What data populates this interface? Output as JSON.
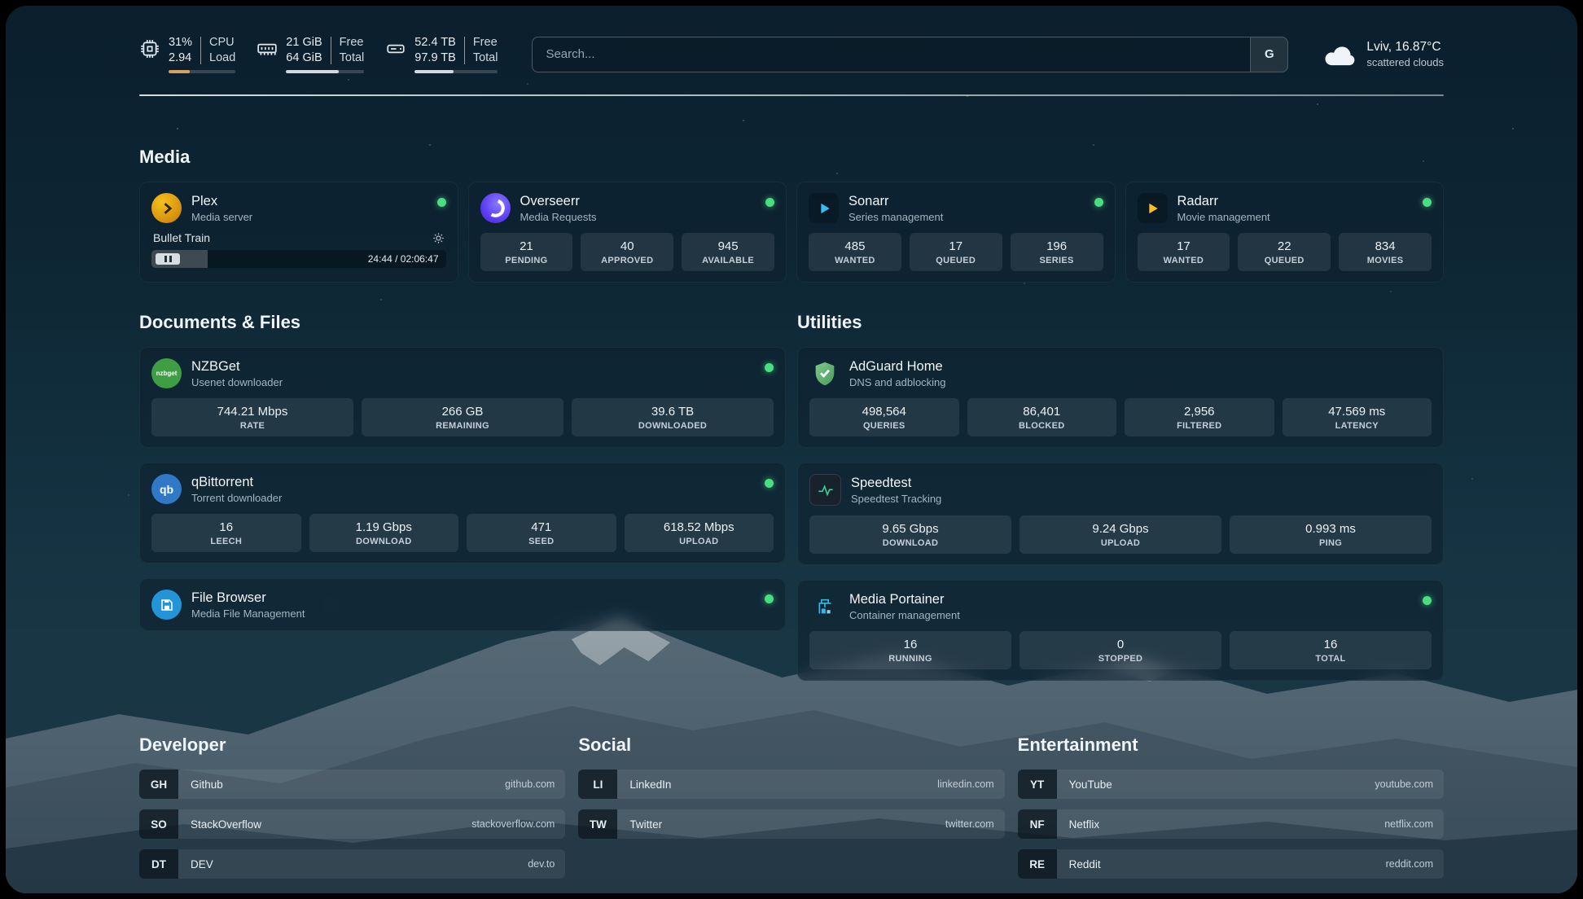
{
  "colors": {
    "status_online": "#4ade80",
    "cpu_bar_fill": "#d9a05b",
    "resource_bar_fill": "#cfd9df",
    "sonarr_accent": "#38bdf8",
    "radarr_accent": "#fbbf24",
    "speedtest_accent": "#34d399",
    "plex_accent": "#e5a00d",
    "overseerr_accent": "#5b3df5"
  },
  "header": {
    "cpu": {
      "values": [
        "31%",
        "2.94"
      ],
      "labels": [
        "CPU",
        "Load"
      ],
      "progress_pct": 31
    },
    "memory": {
      "values": [
        "21 GiB",
        "64 GiB"
      ],
      "labels": [
        "Free",
        "Total"
      ],
      "progress_pct": 67
    },
    "disk": {
      "values": [
        "52.4 TB",
        "97.9 TB"
      ],
      "labels": [
        "Free",
        "Total"
      ],
      "progress_pct": 47
    },
    "search": {
      "placeholder": "Search...",
      "provider_button": "G"
    },
    "weather": {
      "location": "Lviv, 16.87°C",
      "condition": "scattered clouds"
    }
  },
  "media": {
    "title": "Media",
    "plex": {
      "name": "Plex",
      "subtitle": "Media server",
      "status": "online",
      "now_playing": {
        "title": "Bullet Train",
        "time": "24:44 / 02:06:47",
        "progress_pct": 19
      }
    },
    "overseerr": {
      "name": "Overseerr",
      "subtitle": "Media Requests",
      "status": "online",
      "stats": [
        {
          "value": "21",
          "label": "PENDING"
        },
        {
          "value": "40",
          "label": "APPROVED"
        },
        {
          "value": "945",
          "label": "AVAILABLE"
        }
      ]
    },
    "sonarr": {
      "name": "Sonarr",
      "subtitle": "Series management",
      "status": "online",
      "stats": [
        {
          "value": "485",
          "label": "WANTED"
        },
        {
          "value": "17",
          "label": "QUEUED"
        },
        {
          "value": "196",
          "label": "SERIES"
        }
      ]
    },
    "radarr": {
      "name": "Radarr",
      "subtitle": "Movie management",
      "status": "online",
      "stats": [
        {
          "value": "17",
          "label": "WANTED"
        },
        {
          "value": "22",
          "label": "QUEUED"
        },
        {
          "value": "834",
          "label": "MOVIES"
        }
      ]
    }
  },
  "documents": {
    "title": "Documents & Files",
    "nzbget": {
      "name": "NZBGet",
      "subtitle": "Usenet downloader",
      "status": "online",
      "icon_text": "nzbget",
      "stats": [
        {
          "value": "744.21 Mbps",
          "label": "RATE"
        },
        {
          "value": "266 GB",
          "label": "REMAINING"
        },
        {
          "value": "39.6 TB",
          "label": "DOWNLOADED"
        }
      ]
    },
    "qbittorrent": {
      "name": "qBittorrent",
      "subtitle": "Torrent downloader",
      "status": "online",
      "icon_text": "qb",
      "stats": [
        {
          "value": "16",
          "label": "LEECH"
        },
        {
          "value": "1.19 Gbps",
          "label": "DOWNLOAD"
        },
        {
          "value": "471",
          "label": "SEED"
        },
        {
          "value": "618.52 Mbps",
          "label": "UPLOAD"
        }
      ]
    },
    "filebrowser": {
      "name": "File Browser",
      "subtitle": "Media File Management",
      "status": "online"
    }
  },
  "utilities": {
    "title": "Utilities",
    "adguard": {
      "name": "AdGuard Home",
      "subtitle": "DNS and adblocking",
      "stats": [
        {
          "value": "498,564",
          "label": "QUERIES"
        },
        {
          "value": "86,401",
          "label": "BLOCKED"
        },
        {
          "value": "2,956",
          "label": "FILTERED"
        },
        {
          "value": "47.569 ms",
          "label": "LATENCY"
        }
      ]
    },
    "speedtest": {
      "name": "Speedtest",
      "subtitle": "Speedtest Tracking",
      "stats": [
        {
          "value": "9.65 Gbps",
          "label": "DOWNLOAD"
        },
        {
          "value": "9.24 Gbps",
          "label": "UPLOAD"
        },
        {
          "value": "0.993 ms",
          "label": "PING"
        }
      ]
    },
    "portainer": {
      "name": "Media Portainer",
      "subtitle": "Container management",
      "status": "online",
      "stats": [
        {
          "value": "16",
          "label": "RUNNING"
        },
        {
          "value": "0",
          "label": "STOPPED"
        },
        {
          "value": "16",
          "label": "TOTAL"
        }
      ]
    }
  },
  "bookmarks": [
    {
      "title": "Developer",
      "items": [
        {
          "abbr": "GH",
          "name": "Github",
          "url": "github.com"
        },
        {
          "abbr": "SO",
          "name": "StackOverflow",
          "url": "stackoverflow.com"
        },
        {
          "abbr": "DT",
          "name": "DEV",
          "url": "dev.to"
        }
      ]
    },
    {
      "title": "Social",
      "items": [
        {
          "abbr": "LI",
          "name": "LinkedIn",
          "url": "linkedin.com"
        },
        {
          "abbr": "TW",
          "name": "Twitter",
          "url": "twitter.com"
        }
      ]
    },
    {
      "title": "Entertainment",
      "items": [
        {
          "abbr": "YT",
          "name": "YouTube",
          "url": "youtube.com"
        },
        {
          "abbr": "NF",
          "name": "Netflix",
          "url": "netflix.com"
        },
        {
          "abbr": "RE",
          "name": "Reddit",
          "url": "reddit.com"
        }
      ]
    }
  ]
}
